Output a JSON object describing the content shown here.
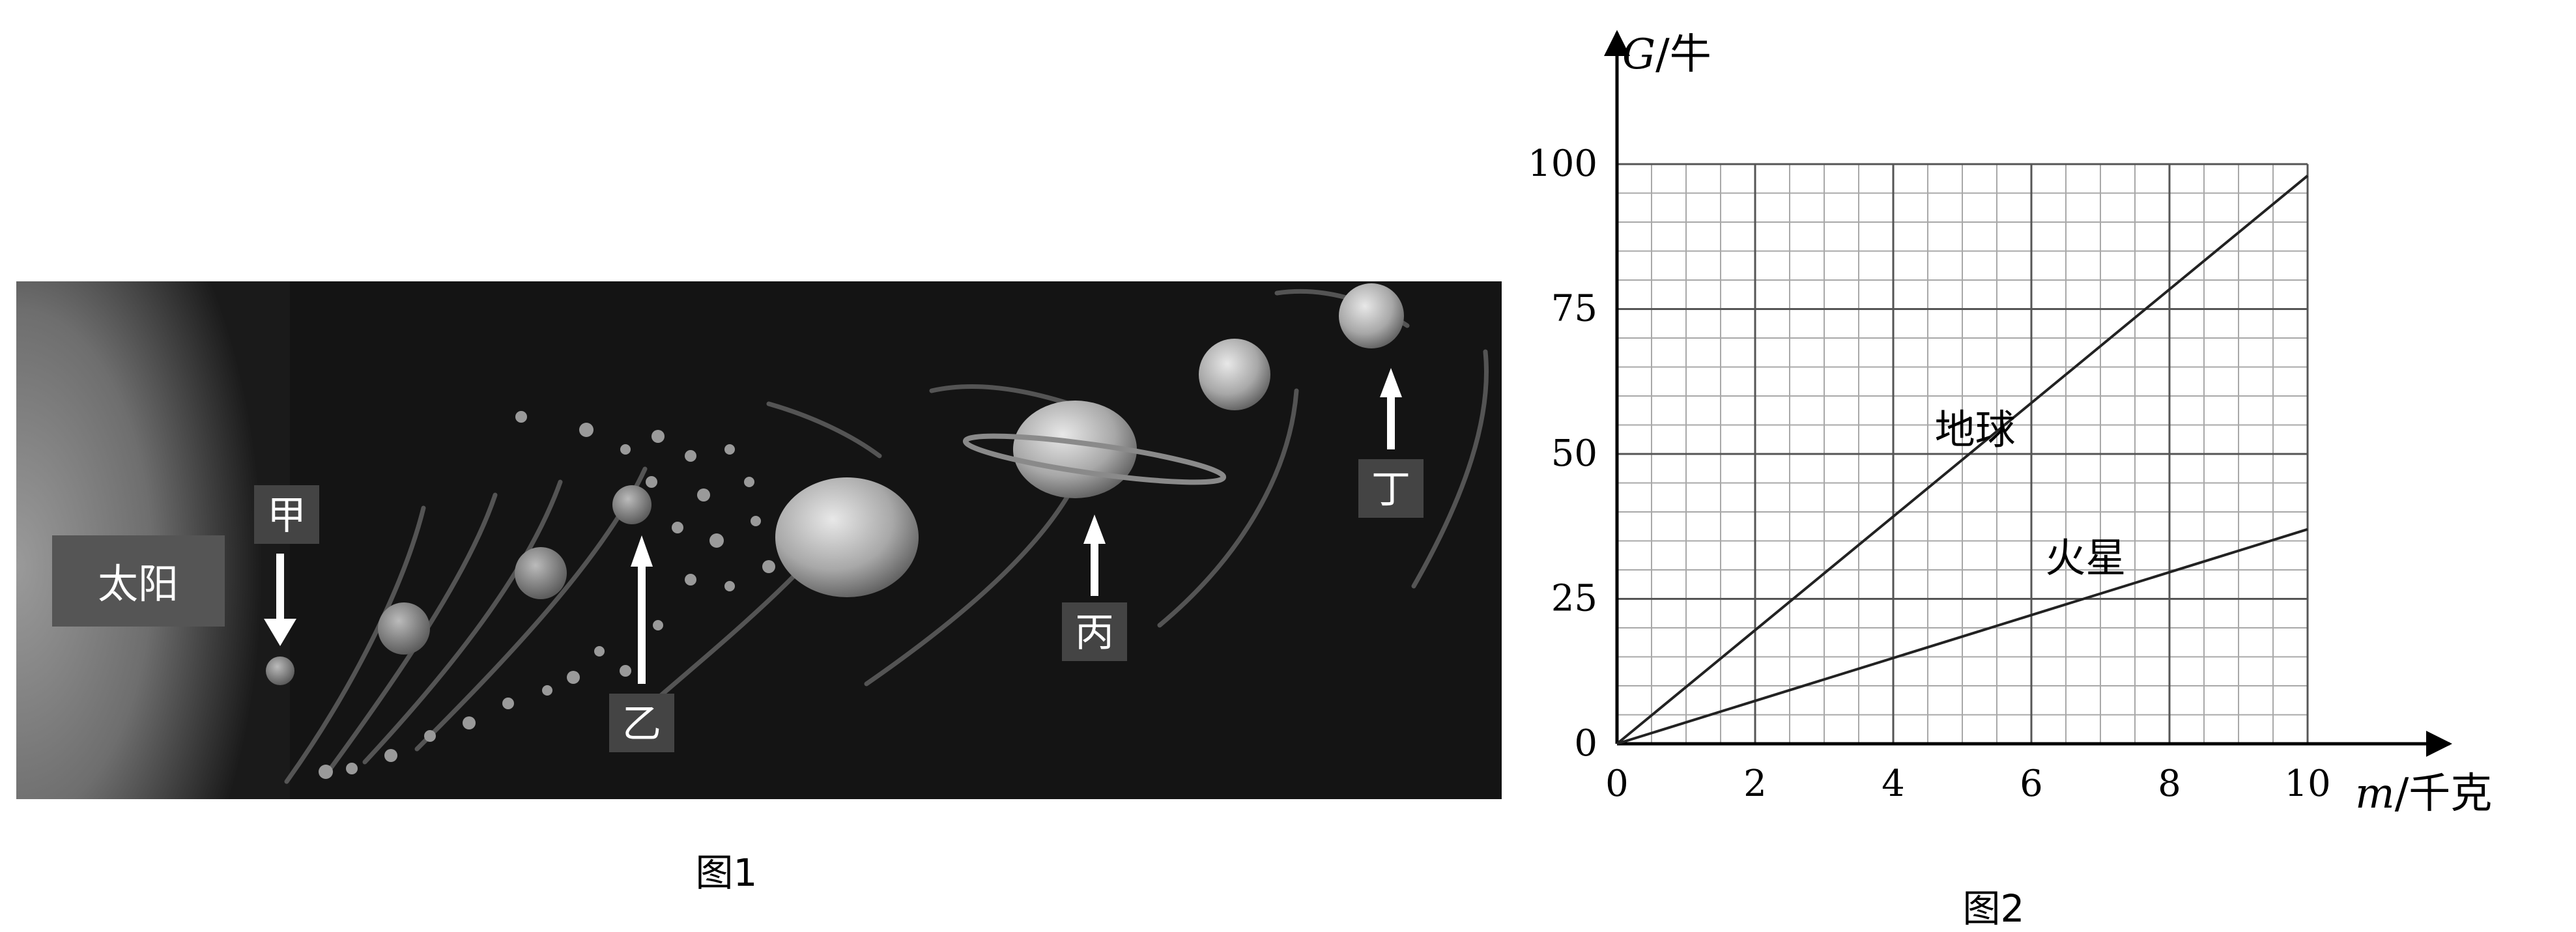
{
  "figure1": {
    "caption": "图1",
    "labels": {
      "sun": "太阳",
      "jia": "甲",
      "yi": "乙",
      "bing": "丙",
      "ding": "丁"
    }
  },
  "figure2": {
    "caption": "图2"
  },
  "chart_data": {
    "type": "line",
    "title": "",
    "ylabel_var": "G",
    "ylabel_unit": "/牛",
    "xlabel_var": "m",
    "xlabel_unit": "/千克",
    "xlim": [
      0,
      10
    ],
    "ylim": [
      0,
      100
    ],
    "x_ticks": [
      "0",
      "2",
      "4",
      "6",
      "8",
      "10"
    ],
    "y_ticks": [
      "0",
      "25",
      "50",
      "75",
      "100"
    ],
    "grid": true,
    "series": [
      {
        "name": "地球",
        "x": [
          0,
          10
        ],
        "y": [
          0,
          98
        ]
      },
      {
        "name": "火星",
        "x": [
          0,
          10
        ],
        "y": [
          0,
          37
        ]
      }
    ]
  }
}
